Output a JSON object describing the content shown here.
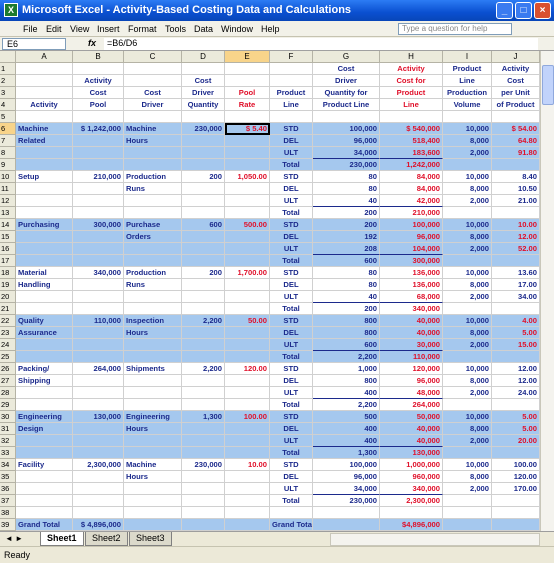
{
  "window": {
    "title": "Microsoft Excel - Activity-Based Costing Data and Calculations"
  },
  "menu": [
    "File",
    "Edit",
    "View",
    "Insert",
    "Format",
    "Tools",
    "Data",
    "Window",
    "Help"
  ],
  "help_box": "Type a question for help",
  "formula_bar": {
    "name_box": "E6",
    "formula": "=B6/D6"
  },
  "sheet": {
    "columns": [
      "A",
      "B",
      "C",
      "D",
      "E",
      "F",
      "G",
      "H",
      "I",
      "J"
    ],
    "rows": [
      {
        "number": 1,
        "cells": {
          "G": "Cost",
          "H": "Activity",
          "I": "Product",
          "J": "Activity"
        }
      },
      {
        "number": 2,
        "cells": {
          "B": "Activity",
          "D": "Cost",
          "G": "Driver",
          "H": "Cost for",
          "I": "Line",
          "J": "Cost"
        }
      },
      {
        "number": 3,
        "cells": {
          "B": "Cost",
          "C": "Cost",
          "D": "Driver",
          "E": "Pool",
          "F": "Product",
          "G": "Quantity for",
          "H": "Product",
          "I": "Production",
          "J": "per Unit"
        }
      },
      {
        "number": 4,
        "cells": {
          "A": "Activity",
          "B": "Pool",
          "C": "Driver",
          "D": "Quantity",
          "E": "Rate",
          "F": "Line",
          "G": "Product Line",
          "H": "Line",
          "I": "Volume",
          "J": "of Product"
        }
      },
      {
        "number": 5,
        "cells": {}
      },
      {
        "number": 6,
        "fill": "#a5c8ee",
        "cells": {
          "A": "Machine",
          "B": "$ 1,242,000",
          "C": "Machine",
          "D": "230,000",
          "E": "$ 5.40",
          "F": "STD",
          "G": "100,000",
          "H": "$ 540,000",
          "I": "10,000",
          "J": "$ 54.00"
        }
      },
      {
        "number": 7,
        "fill": "#a5c8ee",
        "cells": {
          "A": "Related",
          "C": "Hours",
          "F": "DEL",
          "G": "96,000",
          "H": "518,400",
          "I": "8,000",
          "J": "64.80"
        }
      },
      {
        "number": 8,
        "fill": "#a5c8ee",
        "cells": {
          "F": "ULT",
          "G": "34,000",
          "H": "183,600",
          "I": "2,000",
          "J": "91.80"
        }
      },
      {
        "number": 9,
        "fill": "#a5c8ee",
        "cells": {
          "F": "Total",
          "G": "230,000",
          "H": "1,242,000"
        }
      },
      {
        "number": 10,
        "cells": {
          "A": "Setup",
          "B": "210,000",
          "C": "Production",
          "D": "200",
          "E": "1,050.00",
          "F": "STD",
          "G": "80",
          "H": "84,000",
          "I": "10,000",
          "J": "8.40"
        }
      },
      {
        "number": 11,
        "cells": {
          "C": "Runs",
          "F": "DEL",
          "G": "80",
          "H": "84,000",
          "I": "8,000",
          "J": "10.50"
        }
      },
      {
        "number": 12,
        "cells": {
          "F": "ULT",
          "G": "40",
          "H": "42,000",
          "I": "2,000",
          "J": "21.00"
        }
      },
      {
        "number": 13,
        "cells": {
          "F": "Total",
          "G": "200",
          "H": "210,000"
        }
      },
      {
        "number": 14,
        "fill": "#a5c8ee",
        "cells": {
          "A": "Purchasing",
          "B": "300,000",
          "C": "Purchase",
          "D": "600",
          "E": "500.00",
          "F": "STD",
          "G": "200",
          "H": "100,000",
          "I": "10,000",
          "J": "10.00"
        }
      },
      {
        "number": 15,
        "fill": "#a5c8ee",
        "cells": {
          "C": "Orders",
          "F": "DEL",
          "G": "192",
          "H": "96,000",
          "I": "8,000",
          "J": "12.00"
        }
      },
      {
        "number": 16,
        "fill": "#a5c8ee",
        "cells": {
          "F": "ULT",
          "G": "208",
          "H": "104,000",
          "I": "2,000",
          "J": "52.00"
        }
      },
      {
        "number": 17,
        "fill": "#a5c8ee",
        "cells": {
          "F": "Total",
          "G": "600",
          "H": "300,000"
        }
      },
      {
        "number": 18,
        "cells": {
          "A": "Material",
          "B": "340,000",
          "C": "Production",
          "D": "200",
          "E": "1,700.00",
          "F": "STD",
          "G": "80",
          "H": "136,000",
          "I": "10,000",
          "J": "13.60"
        }
      },
      {
        "number": 19,
        "cells": {
          "A": "Handling",
          "C": "Runs",
          "F": "DEL",
          "G": "80",
          "H": "136,000",
          "I": "8,000",
          "J": "17.00"
        }
      },
      {
        "number": 20,
        "cells": {
          "F": "ULT",
          "G": "40",
          "H": "68,000",
          "I": "2,000",
          "J": "34.00"
        }
      },
      {
        "number": 21,
        "cells": {
          "F": "Total",
          "G": "200",
          "H": "340,000"
        }
      },
      {
        "number": 22,
        "fill": "#a5c8ee",
        "cells": {
          "A": "Quality",
          "B": "110,000",
          "C": "Inspection",
          "D": "2,200",
          "E": "50.00",
          "F": "STD",
          "G": "800",
          "H": "40,000",
          "I": "10,000",
          "J": "4.00"
        }
      },
      {
        "number": 23,
        "fill": "#a5c8ee",
        "cells": {
          "A": "Assurance",
          "C": "Hours",
          "F": "DEL",
          "G": "800",
          "H": "40,000",
          "I": "8,000",
          "J": "5.00"
        }
      },
      {
        "number": 24,
        "fill": "#a5c8ee",
        "cells": {
          "F": "ULT",
          "G": "600",
          "H": "30,000",
          "I": "2,000",
          "J": "15.00"
        }
      },
      {
        "number": 25,
        "fill": "#a5c8ee",
        "cells": {
          "F": "Total",
          "G": "2,200",
          "H": "110,000"
        }
      },
      {
        "number": 26,
        "cells": {
          "A": "Packing/",
          "B": "264,000",
          "C": "Shipments",
          "D": "2,200",
          "E": "120.00",
          "F": "STD",
          "G": "1,000",
          "H": "120,000",
          "I": "10,000",
          "J": "12.00"
        }
      },
      {
        "number": 27,
        "cells": {
          "A": "Shipping",
          "F": "DEL",
          "G": "800",
          "H": "96,000",
          "I": "8,000",
          "J": "12.00"
        }
      },
      {
        "number": 28,
        "cells": {
          "F": "ULT",
          "G": "400",
          "H": "48,000",
          "I": "2,000",
          "J": "24.00"
        }
      },
      {
        "number": 29,
        "cells": {
          "F": "Total",
          "G": "2,200",
          "H": "264,000"
        }
      },
      {
        "number": 30,
        "fill": "#a5c8ee",
        "cells": {
          "A": "Engineering",
          "B": "130,000",
          "C": "Engineering",
          "D": "1,300",
          "E": "100.00",
          "F": "STD",
          "G": "500",
          "H": "50,000",
          "I": "10,000",
          "J": "5.00"
        }
      },
      {
        "number": 31,
        "fill": "#a5c8ee",
        "cells": {
          "A": "Design",
          "C": "Hours",
          "F": "DEL",
          "G": "400",
          "H": "40,000",
          "I": "8,000",
          "J": "5.00"
        }
      },
      {
        "number": 32,
        "fill": "#a5c8ee",
        "cells": {
          "F": "ULT",
          "G": "400",
          "H": "40,000",
          "I": "2,000",
          "J": "20.00"
        }
      },
      {
        "number": 33,
        "fill": "#a5c8ee",
        "cells": {
          "F": "Total",
          "G": "1,300",
          "H": "130,000"
        }
      },
      {
        "number": 34,
        "cells": {
          "A": "Facility",
          "B": "2,300,000",
          "C": "Machine",
          "D": "230,000",
          "E": "10.00",
          "F": "STD",
          "G": "100,000",
          "H": "1,000,000",
          "I": "10,000",
          "J": "100.00"
        }
      },
      {
        "number": 35,
        "cells": {
          "C": "Hours",
          "F": "DEL",
          "G": "96,000",
          "H": "960,000",
          "I": "8,000",
          "J": "120.00"
        }
      },
      {
        "number": 36,
        "cells": {
          "F": "ULT",
          "G": "34,000",
          "H": "340,000",
          "I": "2,000",
          "J": "170.00"
        }
      },
      {
        "number": 37,
        "cells": {
          "F": "Total",
          "G": "230,000",
          "H": "2,300,000"
        }
      },
      {
        "number": 38,
        "cells": {}
      },
      {
        "number": 39,
        "fill": "#a5c8ee",
        "cells": {
          "A": "Grand Total",
          "B": "$ 4,896,000",
          "F": "Grand Total",
          "H": "$4,896,000"
        }
      }
    ]
  },
  "sheet_tabs": [
    "Sheet1",
    "Sheet2",
    "Sheet3"
  ],
  "status": "Ready"
}
